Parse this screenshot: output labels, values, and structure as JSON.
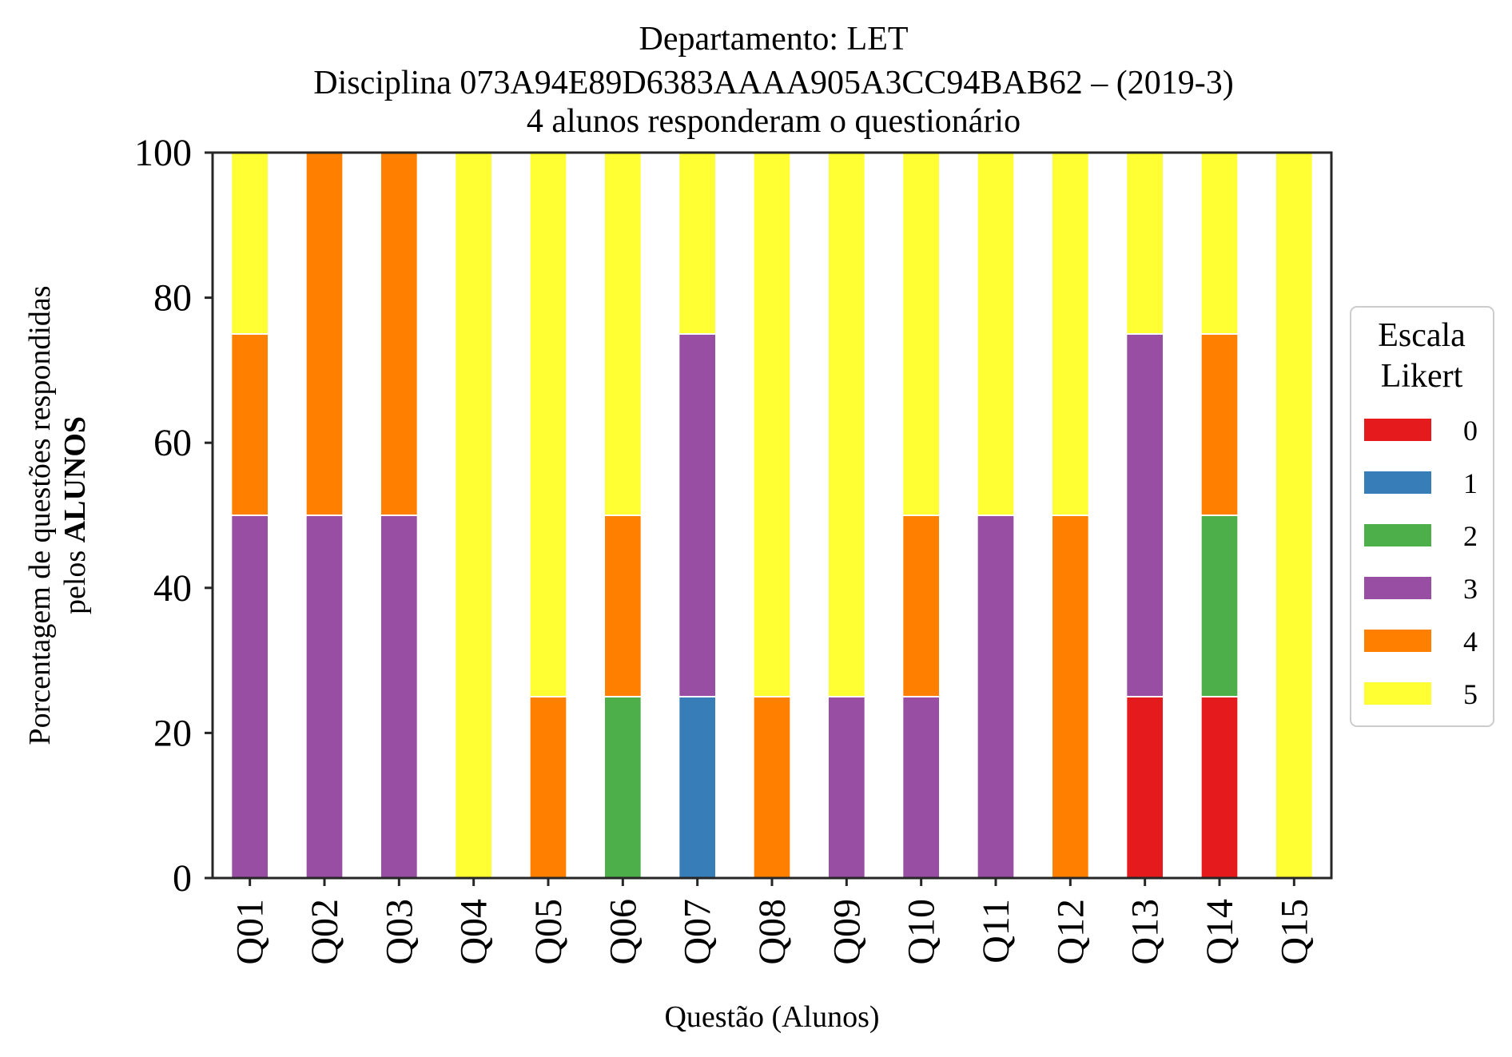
{
  "chart_data": {
    "type": "bar",
    "stacked": true,
    "title_lines": [
      "Departamento: LET",
      "Disciplina 073A94E89D6383AAAA905A3CC94BAB62 – (2019-3)",
      "4 alunos responderam o questionário"
    ],
    "xlabel": "Questão (Alunos)",
    "ylabel_line1": "Porcentagem de questões respondidas",
    "ylabel_line2_prefix": "pelos ",
    "ylabel_line2_bold": "ALUNOS",
    "ylim": [
      0,
      100
    ],
    "yticks": [
      0,
      20,
      40,
      60,
      80,
      100
    ],
    "grid": false,
    "legend_position": "right",
    "legend_title_lines": [
      "Escala",
      "Likert"
    ],
    "categories": [
      "Q01",
      "Q02",
      "Q03",
      "Q04",
      "Q05",
      "Q06",
      "Q07",
      "Q08",
      "Q09",
      "Q10",
      "Q11",
      "Q12",
      "Q13",
      "Q14",
      "Q15"
    ],
    "series": [
      {
        "name": "0",
        "color": "#e41a1c",
        "values": [
          0,
          0,
          0,
          0,
          0,
          0,
          0,
          0,
          0,
          0,
          0,
          0,
          25,
          25,
          0
        ]
      },
      {
        "name": "1",
        "color": "#377eb8",
        "values": [
          0,
          0,
          0,
          0,
          0,
          0,
          25,
          0,
          0,
          0,
          0,
          0,
          0,
          0,
          0
        ]
      },
      {
        "name": "2",
        "color": "#4daf4a",
        "values": [
          0,
          0,
          0,
          0,
          0,
          25,
          0,
          0,
          0,
          0,
          0,
          0,
          0,
          25,
          0
        ]
      },
      {
        "name": "3",
        "color": "#984ea3",
        "values": [
          50,
          50,
          50,
          0,
          0,
          0,
          50,
          0,
          25,
          25,
          50,
          0,
          50,
          0,
          0
        ]
      },
      {
        "name": "4",
        "color": "#ff7f00",
        "values": [
          25,
          50,
          50,
          0,
          25,
          25,
          0,
          25,
          0,
          25,
          0,
          50,
          0,
          25,
          0
        ]
      },
      {
        "name": "5",
        "color": "#ffff33",
        "values": [
          25,
          0,
          0,
          100,
          75,
          50,
          25,
          75,
          75,
          50,
          50,
          50,
          25,
          25,
          100
        ]
      }
    ]
  }
}
